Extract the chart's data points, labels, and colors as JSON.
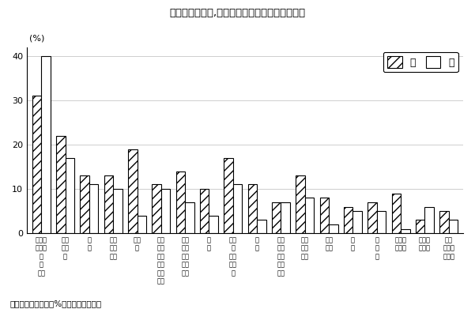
{
  "title": "図３－３　男女,「スポーツ」の種類別行動者率",
  "note": "（注）行動者率が３%以上の種類を表章",
  "ylabel": "(%)",
  "ylim": [
    0,
    42
  ],
  "yticks": [
    0,
    10,
    20,
    30,
    40
  ],
  "male_values": [
    31,
    22,
    13,
    13,
    19,
    11,
    14,
    10,
    17,
    11,
    7,
    13,
    8,
    6,
    7,
    9,
    3,
    5
  ],
  "female_values": [
    40,
    17,
    11,
    10,
    4,
    10,
    7,
    4,
    11,
    3,
    7,
    8,
    2,
    5,
    5,
    1,
    6,
    3
  ],
  "cat_labels": [
    "ウォー\nキング\n・\n軽\n体操",
    "ボウ\nリン\nグ",
    "水\n泳",
    "サイ\nクリ\nング",
    "ゴル\nフ",
    "器具\nをレ\n使ー\nっニ\nたン\nトグ",
    "ジョ\nギン\nグ・\nマラ\nソン",
    "つ\nり",
    "登山\n・\nハイ\nキン\nグ",
    "野\n球",
    "スキ\nー・\nスノ\nーボ\nード",
    "バド\nミン\nトン",
    "サッ\nカー",
    "卓\n球",
    "テ\nニ\nス",
    "バレー\nボール",
    "ソフト\nボール",
    "バス\nケット\nボール"
  ],
  "bar_width": 0.38,
  "background_color": "#ffffff",
  "grid_color": "#bbbbbb",
  "legend_male": "男",
  "legend_female": "女"
}
